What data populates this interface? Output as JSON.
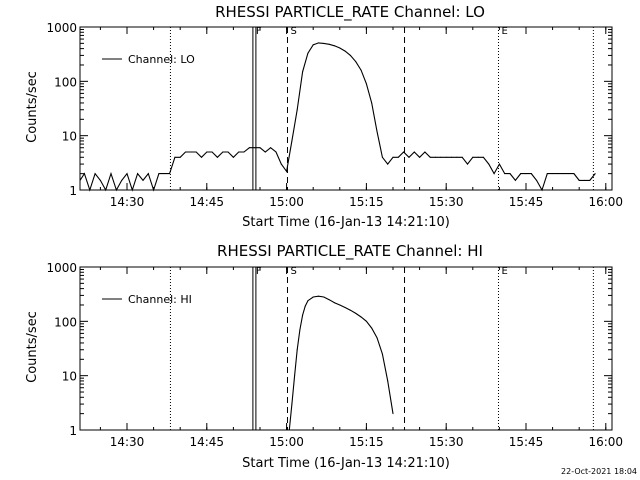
{
  "timestamp": "22-Oct-2021 18:04",
  "chart_data": [
    {
      "type": "line",
      "title": "RHESSI PARTICLE_RATE Channel: LO",
      "xlabel": "Start Time (16-Jan-13 14:21:10)",
      "ylabel": "Counts/sec",
      "yscale": "log",
      "ylim": [
        1,
        1000
      ],
      "xlim": [
        "14:21:10",
        "16:01:10"
      ],
      "x_ticks": [
        "14:30",
        "14:45",
        "15:00",
        "15:15",
        "15:30",
        "15:45",
        "16:00"
      ],
      "y_ticks": [
        "1",
        "10",
        "100",
        "1000"
      ],
      "legend": {
        "position": "top-left",
        "entries": [
          "Channel: LO"
        ]
      },
      "markers": [
        {
          "label": "F",
          "time": "14:53:40",
          "style": "solid"
        },
        {
          "label": "S",
          "time": "15:00:10",
          "style": "dashed"
        },
        {
          "label": "",
          "time": "15:22:10",
          "style": "dashed"
        },
        {
          "label": "",
          "time": "14:38:10",
          "style": "dotted"
        },
        {
          "label": "E",
          "time": "15:39:50",
          "style": "dotted"
        },
        {
          "label": "",
          "time": "15:57:40",
          "style": "dotted"
        }
      ],
      "series": [
        {
          "name": "Channel: LO",
          "x": [
            "14:21:10",
            "14:22:00",
            "14:23:00",
            "14:24:00",
            "14:25:00",
            "14:26:00",
            "14:27:00",
            "14:28:00",
            "14:29:00",
            "14:30:00",
            "14:31:00",
            "14:32:00",
            "14:33:00",
            "14:34:00",
            "14:35:00",
            "14:36:00",
            "14:37:00",
            "14:38:00",
            "14:39:00",
            "14:40:00",
            "14:41:00",
            "14:42:00",
            "14:43:00",
            "14:44:00",
            "14:45:00",
            "14:46:00",
            "14:47:00",
            "14:48:00",
            "14:49:00",
            "14:50:00",
            "14:51:00",
            "14:52:00",
            "14:53:00",
            "14:54:00",
            "14:55:00",
            "14:56:00",
            "14:57:00",
            "14:58:00",
            "14:59:00",
            "15:00:00",
            "15:01:00",
            "15:02:00",
            "15:03:00",
            "15:04:00",
            "15:05:00",
            "15:06:00",
            "15:07:00",
            "15:08:00",
            "15:09:00",
            "15:10:00",
            "15:11:00",
            "15:12:00",
            "15:13:00",
            "15:14:00",
            "15:15:00",
            "15:16:00",
            "15:17:00",
            "15:18:00",
            "15:19:00",
            "15:20:00",
            "15:21:00",
            "15:22:00",
            "15:23:00",
            "15:24:00",
            "15:25:00",
            "15:26:00",
            "15:27:00",
            "15:28:00",
            "15:29:00",
            "15:30:00",
            "15:31:00",
            "15:32:00",
            "15:33:00",
            "15:34:00",
            "15:35:00",
            "15:36:00",
            "15:37:00",
            "15:38:00",
            "15:39:00",
            "15:40:00",
            "15:41:00",
            "15:42:00",
            "15:43:00",
            "15:44:00",
            "15:45:00",
            "15:46:00",
            "15:47:00",
            "15:48:00",
            "15:49:00",
            "15:50:00",
            "15:51:00",
            "15:52:00",
            "15:53:00",
            "15:54:00",
            "15:55:00",
            "15:56:00",
            "15:57:00",
            "15:58:00"
          ],
          "y": [
            1.5,
            2,
            1,
            2,
            1.5,
            1,
            2,
            1,
            1.5,
            2,
            1,
            2,
            1.5,
            2,
            1,
            2,
            2,
            2,
            4,
            4,
            5,
            5,
            5,
            4,
            5,
            5,
            4,
            5,
            5,
            4,
            5,
            5,
            6,
            6,
            6,
            5,
            6,
            5,
            3,
            2.2,
            8,
            30,
            150,
            330,
            470,
            510,
            500,
            480,
            450,
            410,
            360,
            300,
            230,
            160,
            90,
            40,
            12,
            4,
            3,
            4,
            4,
            5,
            4,
            5,
            4,
            5,
            4,
            4,
            4,
            4,
            4,
            4,
            4,
            3,
            4,
            4,
            4,
            3,
            2,
            3,
            2,
            2,
            1.5,
            2,
            2,
            2,
            1.5,
            1,
            2,
            2,
            2,
            2,
            2,
            2,
            1.5,
            1.5,
            1.5,
            2
          ]
        }
      ]
    },
    {
      "type": "line",
      "title": "RHESSI PARTICLE_RATE Channel: HI",
      "xlabel": "Start Time (16-Jan-13 14:21:10)",
      "ylabel": "Counts/sec",
      "yscale": "log",
      "ylim": [
        1,
        1000
      ],
      "xlim": [
        "14:21:10",
        "16:01:10"
      ],
      "x_ticks": [
        "14:30",
        "14:45",
        "15:00",
        "15:15",
        "15:30",
        "15:45",
        "16:00"
      ],
      "y_ticks": [
        "1",
        "10",
        "100",
        "1000"
      ],
      "legend": {
        "position": "top-left",
        "entries": [
          "Channel: HI"
        ]
      },
      "markers": [
        {
          "label": "F",
          "time": "14:53:40",
          "style": "solid"
        },
        {
          "label": "S",
          "time": "15:00:10",
          "style": "dashed"
        },
        {
          "label": "",
          "time": "15:22:10",
          "style": "dashed"
        },
        {
          "label": "",
          "time": "14:38:10",
          "style": "dotted"
        },
        {
          "label": "E",
          "time": "15:39:50",
          "style": "dotted"
        },
        {
          "label": "",
          "time": "15:57:40",
          "style": "dotted"
        }
      ],
      "series": [
        {
          "name": "Channel: HI",
          "x": [
            "15:00:30",
            "15:01:00",
            "15:01:30",
            "15:02:00",
            "15:02:30",
            "15:03:00",
            "15:03:30",
            "15:04:00",
            "15:05:00",
            "15:06:00",
            "15:07:00",
            "15:08:00",
            "15:09:00",
            "15:10:00",
            "15:11:00",
            "15:12:00",
            "15:13:00",
            "15:14:00",
            "15:15:00",
            "15:16:00",
            "15:17:00",
            "15:18:00",
            "15:19:00",
            "15:20:00"
          ],
          "y": [
            1,
            3,
            10,
            30,
            70,
            130,
            190,
            240,
            280,
            290,
            280,
            250,
            220,
            200,
            180,
            160,
            140,
            120,
            100,
            75,
            50,
            25,
            8,
            2
          ]
        }
      ]
    }
  ]
}
